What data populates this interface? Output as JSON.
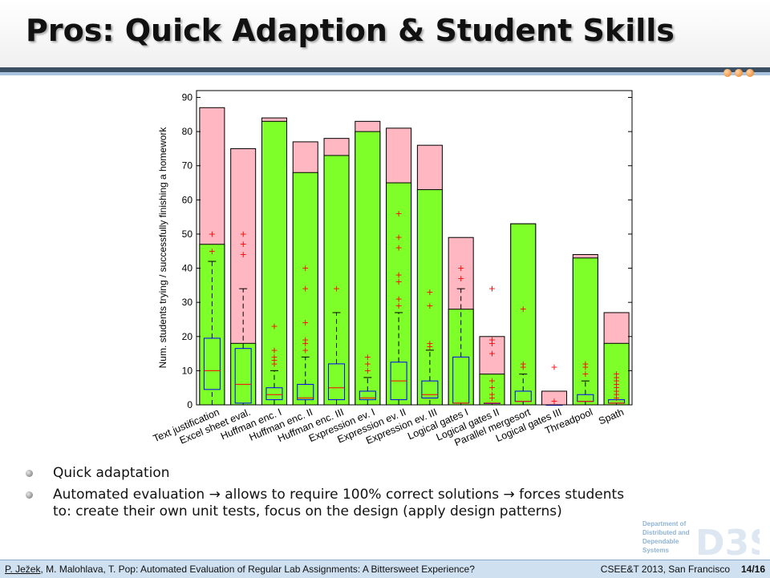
{
  "slide": {
    "title": "Pros: Quick Adaption & Student Skills",
    "bullets": [
      "Quick adaptation",
      "Automated evaluation → allows to require 100% correct solutions → forces students to: create their own unit tests, focus on the design (apply design patterns)"
    ]
  },
  "footer": {
    "author_first": "P. Ježek",
    "citation_rest": ", M. Malohlava, T. Pop: Automated Evaluation of Regular Lab Assignments: A Bittersweet Experience?",
    "venue": "CSEE&T 2013, San Francisco",
    "page": "14/16"
  },
  "logo": {
    "lines": [
      "Department of",
      "Distributed and",
      "Dependable",
      "Systems"
    ],
    "mark": "D3S"
  },
  "colors": {
    "trying": "#ffb8c1",
    "finishing": "#7fff2a",
    "outliers": "#ff0000",
    "median": "#ff0000",
    "title_rule": "#3d4f64",
    "footer_bg": "#cfe0f1"
  },
  "chart_data": {
    "type": "bar",
    "ylabel": "Num. students trying / successfully finishing a homework",
    "ylim": [
      0,
      92
    ],
    "yticks": [
      0,
      10,
      20,
      30,
      40,
      50,
      60,
      70,
      80,
      90
    ],
    "categories": [
      "Text justification",
      "Excel sheet eval.",
      "Huffman enc. I",
      "Huffman enc. II",
      "Huffman enc. III",
      "Expression ev. I",
      "Expression ev. II",
      "Expression ev. III",
      "Logical gates I",
      "Logical gates II",
      "Parallel mergesort",
      "Logical gates III",
      "Threadpool",
      "Spath"
    ],
    "series": [
      {
        "values": [
          87,
          75,
          84,
          77,
          78,
          83,
          81,
          76,
          49,
          20,
          53,
          4,
          44,
          27
        ]
      },
      {
        "values": [
          47,
          18,
          83,
          68,
          73,
          80,
          65,
          63,
          28,
          9,
          53,
          0,
          43,
          18
        ]
      }
    ],
    "boxplots": [
      {
        "whisker_low": 0,
        "q1": 4.5,
        "median": 10,
        "q3": 19.5,
        "whisker_high": 42,
        "outliers": [
          45,
          50
        ]
      },
      {
        "whisker_low": 0,
        "q1": 0.5,
        "median": 6,
        "q3": 16.5,
        "whisker_high": 34,
        "outliers": [
          44,
          47,
          50
        ]
      },
      {
        "whisker_low": 0,
        "q1": 1.5,
        "median": 3,
        "q3": 5,
        "whisker_high": 10,
        "outliers": [
          12,
          13,
          14,
          16,
          23
        ]
      },
      {
        "whisker_low": 0,
        "q1": 1.5,
        "median": 2,
        "q3": 6,
        "whisker_high": 14,
        "outliers": [
          16,
          18,
          19,
          24,
          34,
          40
        ]
      },
      {
        "whisker_low": 0,
        "q1": 1.5,
        "median": 5,
        "q3": 12,
        "whisker_high": 27,
        "outliers": [
          34
        ]
      },
      {
        "whisker_low": 0,
        "q1": 1.5,
        "median": 2,
        "q3": 4,
        "whisker_high": 8,
        "outliers": [
          10,
          12,
          14
        ]
      },
      {
        "whisker_low": 0,
        "q1": 1.5,
        "median": 7,
        "q3": 12.5,
        "whisker_high": 27,
        "outliers": [
          29,
          31,
          36,
          38,
          46,
          49,
          56
        ]
      },
      {
        "whisker_low": 0,
        "q1": 2,
        "median": 3,
        "q3": 7,
        "whisker_high": 16,
        "outliers": [
          17,
          18,
          29,
          33
        ]
      },
      {
        "whisker_low": 0,
        "q1": 0.5,
        "median": 0.5,
        "q3": 14,
        "whisker_high": 34,
        "outliers": [
          37,
          40
        ]
      },
      {
        "whisker_low": 0,
        "q1": 0.5,
        "median": 0.5,
        "q3": 0.5,
        "whisker_high": 0.5,
        "outliers": [
          2,
          3,
          5,
          7,
          15,
          18,
          19,
          34
        ]
      },
      {
        "whisker_low": 0,
        "q1": 1,
        "median": 1,
        "q3": 4,
        "whisker_high": 9,
        "outliers": [
          11,
          12,
          28
        ]
      },
      {
        "whisker_low": 0,
        "q1": 0,
        "median": 0,
        "q3": 0,
        "whisker_high": 0,
        "outliers": [
          1,
          11
        ]
      },
      {
        "whisker_low": 0,
        "q1": 1,
        "median": 1,
        "q3": 3,
        "whisker_high": 7,
        "outliers": [
          9,
          11,
          12
        ]
      },
      {
        "whisker_low": 0,
        "q1": 0.5,
        "median": 0.5,
        "q3": 1.5,
        "whisker_high": 1.5,
        "outliers": [
          2,
          3,
          4,
          5,
          6,
          7,
          8,
          9
        ]
      }
    ],
    "grid": false,
    "legend": "none"
  }
}
